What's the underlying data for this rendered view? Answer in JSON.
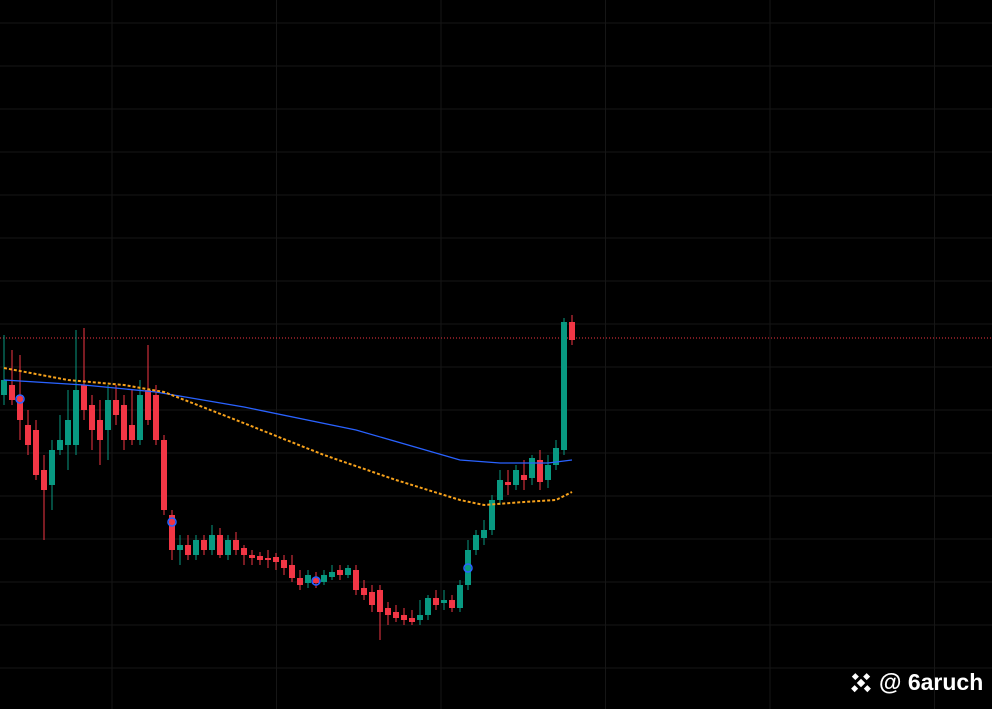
{
  "chart_data": {
    "type": "candlestick",
    "watermark": "@ 6aruch",
    "ylim": [
      0,
      709
    ],
    "grid": true,
    "up_color": "#089981",
    "down_color": "#f23645",
    "open": [
      314,
      324,
      314,
      284,
      279,
      239,
      224,
      259,
      264,
      264,
      324,
      304,
      289,
      279,
      309,
      304,
      284,
      269,
      319,
      314,
      269,
      194,
      159,
      164,
      154,
      169,
      159,
      174,
      154,
      169,
      161,
      154,
      153,
      151,
      152,
      149,
      144,
      131,
      126,
      131,
      127,
      132,
      139,
      134,
      139,
      121,
      117,
      119,
      101,
      97,
      94,
      91,
      89,
      94,
      111,
      106,
      109,
      101,
      124,
      159,
      171,
      179,
      209,
      227,
      224,
      234,
      231,
      249,
      229,
      244,
      259,
      387
    ],
    "high": [
      374,
      359,
      354,
      299,
      289,
      254,
      269,
      294,
      319,
      379,
      381,
      314,
      309,
      324,
      324,
      314,
      319,
      329,
      364,
      324,
      274,
      199,
      174,
      174,
      174,
      174,
      184,
      181,
      174,
      177,
      164,
      159,
      157,
      159,
      156,
      154,
      154,
      139,
      139,
      137,
      139,
      144,
      144,
      144,
      144,
      129,
      124,
      124,
      107,
      104,
      101,
      99,
      109,
      114,
      119,
      119,
      114,
      129,
      169,
      179,
      189,
      214,
      239,
      239,
      244,
      249,
      254,
      259,
      254,
      269,
      391,
      394
    ],
    "low": [
      304,
      304,
      269,
      254,
      229,
      169,
      199,
      254,
      239,
      254,
      289,
      259,
      244,
      249,
      284,
      259,
      264,
      264,
      284,
      264,
      194,
      149,
      144,
      149,
      149,
      154,
      154,
      151,
      149,
      154,
      144,
      144,
      144,
      141,
      139,
      134,
      127,
      119,
      121,
      121,
      124,
      129,
      129,
      131,
      114,
      109,
      97,
      69,
      84,
      87,
      84,
      84,
      84,
      89,
      99,
      99,
      97,
      97,
      119,
      154,
      164,
      174,
      204,
      214,
      219,
      219,
      224,
      219,
      221,
      239,
      254,
      364
    ],
    "close": [
      329,
      309,
      289,
      264,
      234,
      219,
      259,
      269,
      289,
      319,
      299,
      279,
      269,
      309,
      294,
      269,
      269,
      314,
      289,
      269,
      199,
      159,
      164,
      154,
      169,
      159,
      174,
      154,
      169,
      159,
      154,
      151,
      149,
      149,
      147,
      141,
      131,
      124,
      134,
      126,
      134,
      137,
      134,
      141,
      119,
      114,
      104,
      97,
      94,
      91,
      89,
      87,
      94,
      111,
      104,
      109,
      101,
      124,
      159,
      174,
      179,
      209,
      229,
      224,
      239,
      229,
      251,
      227,
      244,
      261,
      387,
      369
    ],
    "overlays": [
      {
        "color": "#2962ff",
        "dashed": false,
        "x": [
          0,
          10,
          19,
          30,
          44,
          57,
          62,
          68,
          71
        ],
        "values": [
          329,
          324,
          317,
          302,
          279,
          249,
          246,
          246,
          249
        ]
      },
      {
        "color": "#f7a21b",
        "dashed": true,
        "x": [
          0,
          8,
          15,
          20,
          29,
          40,
          49,
          57,
          60,
          65,
          69,
          71
        ],
        "values": [
          341,
          329,
          324,
          317,
          289,
          254,
          229,
          209,
          204,
          207,
          209,
          217
        ]
      }
    ],
    "signals": {
      "color": "#2962ff",
      "x": [
        2,
        21,
        39,
        58
      ],
      "values": [
        310,
        187,
        128,
        141
      ]
    },
    "price_line": {
      "value": 371,
      "color": "#f23645"
    }
  }
}
